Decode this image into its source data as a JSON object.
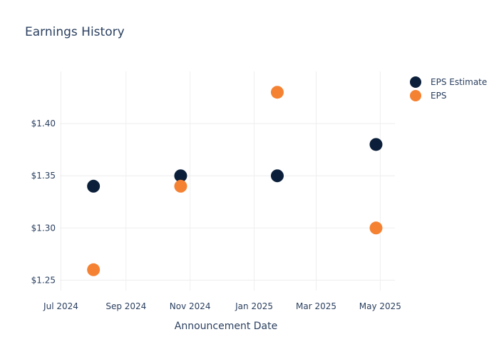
{
  "chart_data": {
    "type": "scatter",
    "title": "Earnings History",
    "xlabel": "Announcement Date",
    "ylabel": "",
    "x_ticks": [
      "Jul 2024",
      "Sep 2024",
      "Nov 2024",
      "Jan 2025",
      "Mar 2025",
      "May 2025"
    ],
    "y_ticks": [
      "$1.25",
      "$1.30",
      "$1.35",
      "$1.40"
    ],
    "ylim": [
      1.24,
      1.45
    ],
    "xlim": [
      "2024-06-30",
      "2025-05-15"
    ],
    "series": [
      {
        "name": "EPS Estimate",
        "color": "#0b1f3a",
        "points": [
          {
            "x": "2024-08-01",
            "y": 1.34
          },
          {
            "x": "2024-10-23",
            "y": 1.35
          },
          {
            "x": "2025-01-23",
            "y": 1.35
          },
          {
            "x": "2025-04-27",
            "y": 1.38
          }
        ]
      },
      {
        "name": "EPS",
        "color": "#f58233",
        "points": [
          {
            "x": "2024-08-01",
            "y": 1.26
          },
          {
            "x": "2024-10-23",
            "y": 1.34
          },
          {
            "x": "2025-01-23",
            "y": 1.43
          },
          {
            "x": "2025-04-27",
            "y": 1.3
          }
        ]
      }
    ],
    "legend_position": "top-right",
    "grid": true
  }
}
